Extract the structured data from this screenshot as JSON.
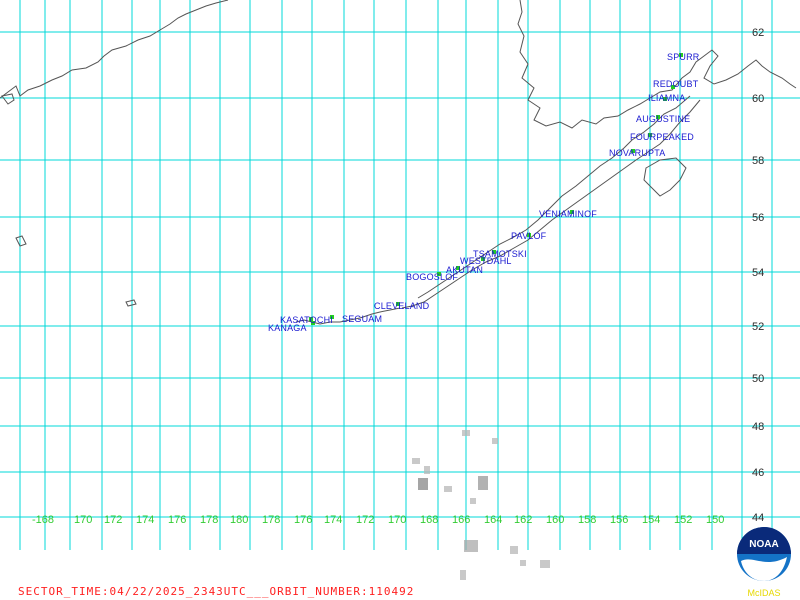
{
  "map": {
    "latitude_labels": [
      "62",
      "60",
      "58",
      "56",
      "54",
      "52",
      "50",
      "48",
      "46",
      "44"
    ],
    "longitude_labels": [
      "-168",
      "170",
      "172",
      "174",
      "176",
      "178",
      "180",
      "178",
      "176",
      "174",
      "172",
      "170",
      "168",
      "166",
      "164",
      "162",
      "160",
      "158",
      "156",
      "154",
      "152",
      "150"
    ],
    "volcanoes": [
      {
        "name": "SPURR"
      },
      {
        "name": "REDOUBT"
      },
      {
        "name": "ILIAMNA"
      },
      {
        "name": "AUGUSTINE"
      },
      {
        "name": "FOURPEAKED"
      },
      {
        "name": "NOVARUPTA"
      },
      {
        "name": "VENIAMINOF"
      },
      {
        "name": "PAVLOF"
      },
      {
        "name": "TSAMOTSKI"
      },
      {
        "name": "WESTDAHL"
      },
      {
        "name": "AKUTAN"
      },
      {
        "name": "BOGOSLOF"
      },
      {
        "name": "CLEVELAND"
      },
      {
        "name": "KASATOCHI"
      },
      {
        "name": "SEGUAM"
      },
      {
        "name": "KANAGA"
      }
    ],
    "colors": {
      "grid": "#00d8d8",
      "coastline": "#555555",
      "volcano_label": "#1a1ad0",
      "volcano_marker": "#22cc22",
      "lon_label": "#33cc33",
      "lat_label": "#2b2b2b",
      "footer_text": "#ff2020"
    }
  },
  "footer": {
    "text": "SECTOR_TIME:04/22/2025_2343UTC___ORBIT_NUMBER:110492"
  },
  "logo": {
    "label": "NOAA",
    "caption": "McIDAS"
  }
}
